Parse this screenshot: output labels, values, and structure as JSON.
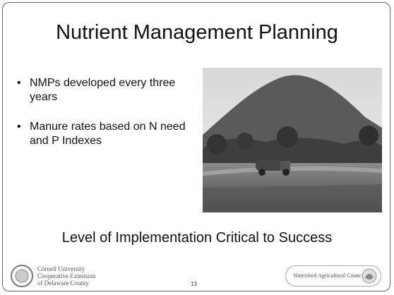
{
  "slide": {
    "title": "Nutrient Management Planning",
    "bullets": [
      "NMPs developed every three years",
      "Manure rates based on N need and P Indexes"
    ],
    "subheading": "Level of Implementation Critical to Success",
    "footer": {
      "org_lines": [
        "Cornell University",
        "Cooperative Extension",
        "of Delaware County"
      ],
      "page_number": "13",
      "partner": "Watershed Agricultural Council"
    }
  }
}
